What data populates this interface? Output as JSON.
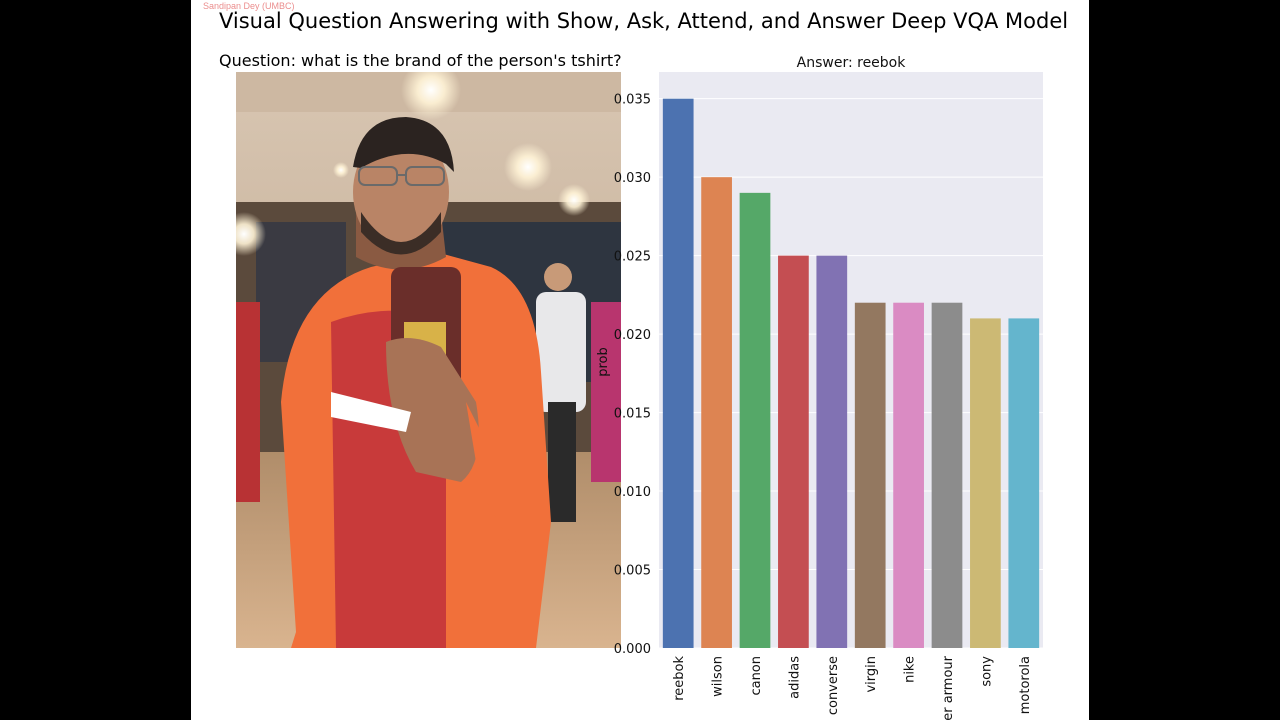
{
  "watermark": "Sandipan Dey (UMBC)",
  "title": "Visual Question Answering with Show, Ask, Attend, and Answer Deep VQA Model",
  "question": "Question: what is the brand of the person's tshirt?",
  "colors": {
    "plot_background": "#eaeaf2",
    "page_background": "#ffffff",
    "letterbox": "#000000"
  },
  "chart_data": {
    "type": "bar",
    "title": "Answer: reebok",
    "xlabel": "",
    "ylabel": "prob",
    "categories": [
      "reebok",
      "wilson",
      "canon",
      "adidas",
      "converse",
      "virgin",
      "nike",
      "under armour",
      "sony",
      "motorola"
    ],
    "values": [
      0.035,
      0.03,
      0.029,
      0.025,
      0.025,
      0.022,
      0.022,
      0.022,
      0.021,
      0.021
    ],
    "colors": [
      "#4c72b0",
      "#dd8452",
      "#55a868",
      "#c44e52",
      "#8172b3",
      "#937860",
      "#da8bc3",
      "#8c8c8c",
      "#ccb974",
      "#64b5cd"
    ],
    "yticks": [
      "0.000",
      "0.005",
      "0.010",
      "0.015",
      "0.020",
      "0.025",
      "0.030",
      "0.035"
    ],
    "ylim": [
      0,
      0.0367
    ],
    "grid": true
  }
}
